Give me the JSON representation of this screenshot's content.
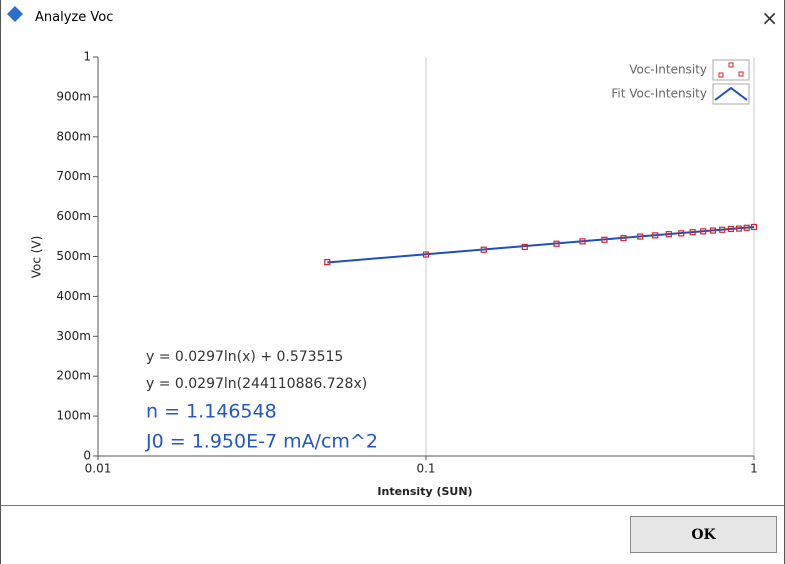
{
  "window": {
    "title": "Analyze Voc",
    "close": "×",
    "button": "OK"
  },
  "chart_data": {
    "type": "scatter",
    "xlabel": "Intensity (SUN)",
    "ylabel": "Voc (V)",
    "xscale": "log",
    "xlim": [
      0.01,
      1
    ],
    "xticks": [
      0.01,
      0.1,
      1
    ],
    "xgrid": true,
    "ylim": [
      0,
      1
    ],
    "yticks": [
      0,
      {
        "value": 0.1,
        "label": "100m"
      },
      {
        "value": 0.2,
        "label": "200m"
      },
      {
        "value": 0.3,
        "label": "300m"
      },
      {
        "value": 0.4,
        "label": "400m"
      },
      {
        "value": 0.5,
        "label": "500m"
      },
      {
        "value": 0.6,
        "label": "600m"
      },
      {
        "value": 0.7,
        "label": "700m"
      },
      {
        "value": 0.8,
        "label": "800m"
      },
      {
        "value": 0.9,
        "label": "900m"
      },
      1
    ],
    "legend": "top-right",
    "series": [
      {
        "name": "Voc-Intensity",
        "color": "#d0262b",
        "marker": "square",
        "x": [
          0.05,
          0.1,
          0.15,
          0.2,
          0.25,
          0.3,
          0.35,
          0.4,
          0.45,
          0.5,
          0.55,
          0.6,
          0.65,
          0.7,
          0.75,
          0.8,
          0.85,
          0.9,
          0.95,
          1
        ],
        "values": [
          0.486,
          0.505,
          0.517,
          0.524,
          0.532,
          0.538,
          0.542,
          0.546,
          0.55,
          0.553,
          0.556,
          0.558,
          0.561,
          0.563,
          0.565,
          0.567,
          0.569,
          0.57,
          0.572,
          0.574
        ]
      },
      {
        "name": "Fit Voc-Intensity",
        "color": "#1d4fbf",
        "marker": "line",
        "x": [
          0.05,
          1
        ],
        "values": [
          0.485,
          0.574
        ]
      }
    ],
    "annotations": [
      {
        "text": "y = 0.0297ln(x) + 0.573515",
        "color": "#333333"
      },
      {
        "text": "y = 0.0297ln(244110886.728x)",
        "color": "#333333"
      },
      {
        "text": "n = 1.146548",
        "color": "#2457c5"
      },
      {
        "text": "J0 = 1.950E-7 mA/cm^2",
        "color": "#2457c5"
      }
    ]
  }
}
